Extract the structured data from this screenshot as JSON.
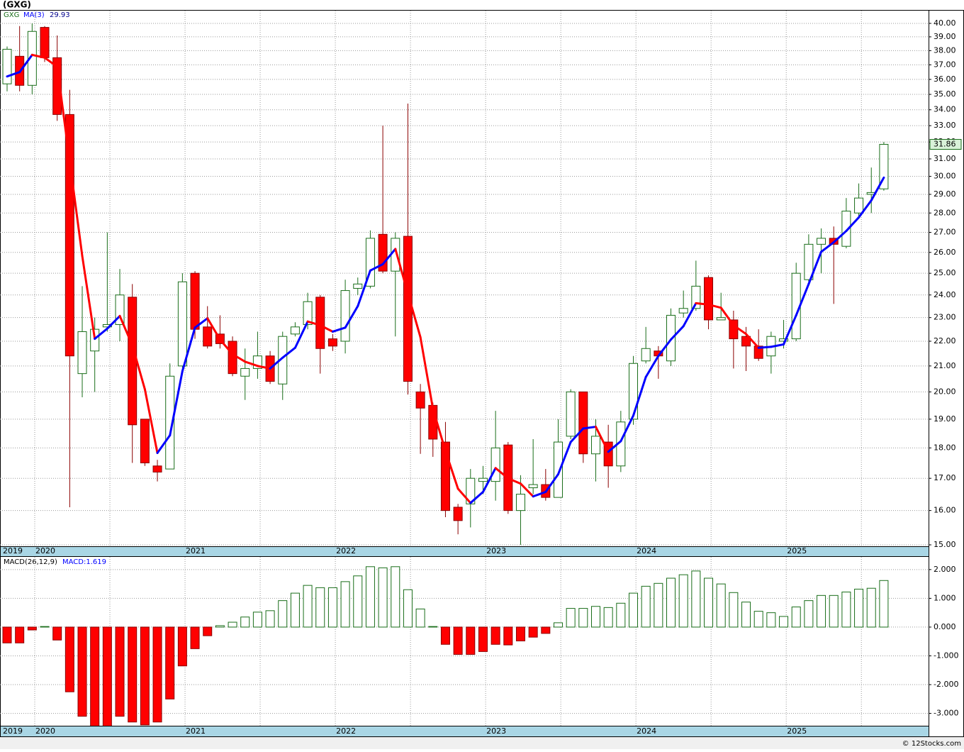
{
  "title": "(GXG)",
  "footer": "© 12Stocks.com",
  "chart_data": [
    {
      "type": "candlestick",
      "name": "GXG",
      "log_scale": true,
      "grid": true,
      "up_color": "#1a6e1a",
      "down_color": "#ff0000",
      "categories": [
        "2019",
        null,
        null,
        "2020",
        null,
        null,
        null,
        null,
        null,
        null,
        null,
        null,
        null,
        null,
        null,
        "2021",
        null,
        null,
        null,
        null,
        null,
        null,
        null,
        null,
        null,
        null,
        null,
        "2022",
        null,
        null,
        null,
        null,
        null,
        null,
        null,
        null,
        null,
        null,
        null,
        "2023",
        null,
        null,
        null,
        null,
        null,
        null,
        null,
        null,
        null,
        null,
        null,
        "2024",
        null,
        null,
        null,
        null,
        null,
        null,
        null,
        null,
        null,
        null,
        null,
        "2025",
        null,
        null,
        null,
        null,
        null,
        null,
        null
      ],
      "open": [
        35.7,
        37.6,
        35.6,
        39.7,
        37.5,
        33.7,
        20.7,
        21.6,
        22.6,
        22.7,
        23.9,
        19.0,
        17.4,
        17.3,
        21.0,
        25.0,
        22.6,
        22.3,
        22.0,
        20.6,
        20.9,
        21.4,
        20.3,
        22.3,
        22.7,
        23.9,
        22.1,
        22.0,
        24.3,
        24.4,
        26.9,
        25.1,
        26.8,
        20.0,
        19.5,
        18.2,
        16.1,
        16.2,
        16.9,
        16.9,
        18.1,
        16.0,
        16.7,
        16.8,
        16.4,
        18.4,
        20.0,
        17.8,
        18.2,
        17.4,
        19.0,
        21.2,
        21.6,
        21.2,
        23.2,
        23.4,
        24.8,
        22.9,
        22.9,
        22.2,
        21.8,
        21.4,
        22.0,
        22.1,
        24.7,
        26.4,
        26.7,
        26.3,
        28.0,
        29.0,
        29.3
      ],
      "high": [
        38.3,
        39.8,
        40.0,
        39.8,
        39.1,
        35.3,
        24.4,
        23.0,
        27.0,
        25.2,
        24.5,
        19.0,
        17.6,
        21.1,
        25.0,
        25.1,
        23.5,
        23.1,
        22.2,
        21.7,
        22.4,
        21.6,
        22.4,
        22.8,
        24.1,
        24.0,
        22.3,
        24.7,
        24.8,
        27.1,
        33.0,
        27.0,
        34.4,
        20.3,
        19.6,
        18.9,
        16.2,
        17.3,
        17.4,
        19.3,
        18.2,
        17.1,
        18.3,
        17.3,
        19.0,
        20.1,
        20.0,
        19.0,
        18.8,
        19.3,
        21.4,
        22.6,
        21.8,
        23.4,
        24.2,
        25.6,
        24.9,
        24.1,
        23.3,
        22.6,
        22.5,
        22.4,
        22.9,
        25.5,
        26.9,
        27.2,
        27.3,
        28.8,
        29.6,
        30.5,
        32.0
      ],
      "low": [
        35.2,
        35.2,
        35.0,
        37.2,
        33.3,
        16.1,
        19.8,
        20.0,
        22.4,
        22.0,
        17.5,
        17.4,
        16.9,
        17.3,
        20.9,
        22.1,
        21.7,
        21.7,
        20.6,
        19.7,
        20.5,
        20.3,
        19.7,
        22.2,
        22.5,
        20.7,
        21.6,
        21.5,
        24.0,
        24.3,
        25.0,
        22.2,
        19.9,
        17.8,
        17.7,
        15.8,
        15.3,
        15.5,
        16.5,
        16.3,
        15.9,
        15.0,
        16.5,
        16.3,
        16.4,
        18.3,
        17.5,
        16.9,
        16.7,
        17.2,
        18.8,
        21.1,
        20.5,
        21.0,
        23.0,
        23.3,
        22.5,
        22.9,
        20.9,
        20.8,
        21.2,
        20.7,
        21.7,
        22.0,
        24.6,
        25.0,
        23.6,
        26.2,
        27.8,
        28.0,
        29.2
      ],
      "close": [
        38.1,
        35.6,
        39.4,
        37.5,
        33.7,
        21.4,
        22.4,
        22.5,
        22.7,
        24.0,
        18.8,
        17.5,
        17.2,
        20.6,
        24.6,
        22.5,
        21.8,
        21.9,
        20.7,
        20.9,
        21.4,
        20.4,
        22.2,
        22.6,
        23.7,
        21.7,
        21.8,
        24.2,
        24.5,
        26.7,
        25.1,
        26.7,
        20.4,
        19.4,
        18.3,
        16.0,
        15.7,
        17.0,
        17.0,
        18.0,
        16.0,
        16.5,
        16.8,
        16.4,
        18.2,
        20.0,
        17.8,
        18.4,
        17.4,
        18.9,
        21.1,
        21.7,
        21.4,
        23.1,
        23.4,
        24.4,
        22.9,
        23.0,
        22.1,
        21.8,
        21.3,
        22.2,
        22.1,
        25.0,
        26.4,
        26.7,
        26.4,
        28.1,
        28.8,
        29.1,
        31.86
      ],
      "overlay": {
        "name": "MA(3)",
        "up_color": "#0000ff",
        "down_color": "#ff0000",
        "values": [
          36.2,
          36.5,
          37.7,
          37.5,
          36.87,
          30.87,
          25.83,
          22.1,
          22.53,
          23.07,
          21.83,
          20.1,
          17.83,
          18.43,
          20.8,
          22.57,
          22.97,
          22.07,
          21.47,
          21.17,
          21.0,
          20.9,
          21.33,
          21.73,
          22.83,
          22.67,
          22.4,
          22.57,
          23.5,
          25.13,
          25.43,
          26.17,
          24.07,
          22.17,
          19.37,
          17.9,
          16.67,
          16.23,
          16.57,
          17.33,
          17.0,
          16.83,
          16.43,
          16.57,
          17.13,
          18.2,
          18.67,
          18.73,
          17.87,
          18.23,
          19.13,
          20.57,
          21.4,
          22.07,
          22.63,
          23.63,
          23.57,
          23.43,
          22.67,
          22.3,
          21.73,
          21.77,
          21.87,
          23.1,
          24.5,
          26.03,
          26.5,
          27.07,
          27.77,
          28.67,
          29.93
        ]
      },
      "ylim": [
        14.96,
        40.97
      ],
      "yticks": [
        {
          "value": 15,
          "label": "15.00"
        },
        {
          "value": 16,
          "label": "16.00"
        },
        {
          "value": 17,
          "label": "17.00"
        },
        {
          "value": 18,
          "label": "18.00"
        },
        {
          "value": 19,
          "label": "19.00"
        },
        {
          "value": 20,
          "label": "20.00"
        },
        {
          "value": 21,
          "label": "21.00"
        },
        {
          "value": 22,
          "label": "22.00"
        },
        {
          "value": 23,
          "label": "23.00"
        },
        {
          "value": 24,
          "label": "24.00"
        },
        {
          "value": 25,
          "label": "25.00"
        },
        {
          "value": 26,
          "label": "26.00"
        },
        {
          "value": 27,
          "label": "27.00"
        },
        {
          "value": 28,
          "label": "28.00"
        },
        {
          "value": 29,
          "label": "29.00"
        },
        {
          "value": 30,
          "label": "30.00"
        },
        {
          "value": 31,
          "label": "31.00"
        },
        {
          "value": 32,
          "label": "32.00"
        },
        {
          "value": 33,
          "label": "33.00"
        },
        {
          "value": 34,
          "label": "34.00"
        },
        {
          "value": 35,
          "label": "35.00"
        },
        {
          "value": 36,
          "label": "36.00"
        },
        {
          "value": 37,
          "label": "37.00"
        },
        {
          "value": 38,
          "label": "38.00"
        },
        {
          "value": 39,
          "label": "39.00"
        },
        {
          "value": 40,
          "label": "40.00"
        }
      ]
    },
    {
      "type": "bar",
      "name": "MACD(26,12,9)",
      "legend_label": "MACD:1.619",
      "grid": true,
      "pos_color": "#1a6e1a",
      "neg_color": "#ff0000",
      "categories": [
        "2019",
        null,
        null,
        "2020",
        null,
        null,
        null,
        null,
        null,
        null,
        null,
        null,
        null,
        null,
        null,
        "2021",
        null,
        null,
        null,
        null,
        null,
        null,
        null,
        null,
        null,
        null,
        null,
        "2022",
        null,
        null,
        null,
        null,
        null,
        null,
        null,
        null,
        null,
        null,
        null,
        "2023",
        null,
        null,
        null,
        null,
        null,
        null,
        null,
        null,
        null,
        null,
        null,
        "2024",
        null,
        null,
        null,
        null,
        null,
        null,
        null,
        null,
        null,
        null,
        null,
        "2025",
        null,
        null,
        null,
        null,
        null,
        null,
        null
      ],
      "values": [
        -0.55,
        -0.55,
        -0.1,
        0.02,
        -0.45,
        -2.25,
        -3.1,
        -3.5,
        -3.5,
        -3.1,
        -3.3,
        -3.4,
        -3.3,
        -2.5,
        -1.35,
        -0.75,
        -0.3,
        0.05,
        0.17,
        0.35,
        0.52,
        0.57,
        0.92,
        1.18,
        1.45,
        1.37,
        1.37,
        1.58,
        1.78,
        2.1,
        2.06,
        2.1,
        1.3,
        0.63,
        0.02,
        -0.6,
        -0.95,
        -0.95,
        -0.85,
        -0.6,
        -0.62,
        -0.48,
        -0.35,
        -0.22,
        0.15,
        0.65,
        0.65,
        0.72,
        0.68,
        0.83,
        1.18,
        1.42,
        1.52,
        1.7,
        1.82,
        1.95,
        1.7,
        1.5,
        1.2,
        0.87,
        0.55,
        0.5,
        0.37,
        0.7,
        0.92,
        1.1,
        1.1,
        1.22,
        1.32,
        1.35,
        1.619
      ],
      "ylim": [
        -3.43,
        2.44
      ],
      "yticks": [
        {
          "value": 2,
          "label": "2.000"
        },
        {
          "value": 1,
          "label": "1.000"
        },
        {
          "value": 0,
          "label": "0.000"
        },
        {
          "value": -1,
          "label": "-1.000"
        },
        {
          "value": -2,
          "label": "-2.000"
        },
        {
          "value": -3,
          "label": "-3.000"
        }
      ]
    }
  ]
}
